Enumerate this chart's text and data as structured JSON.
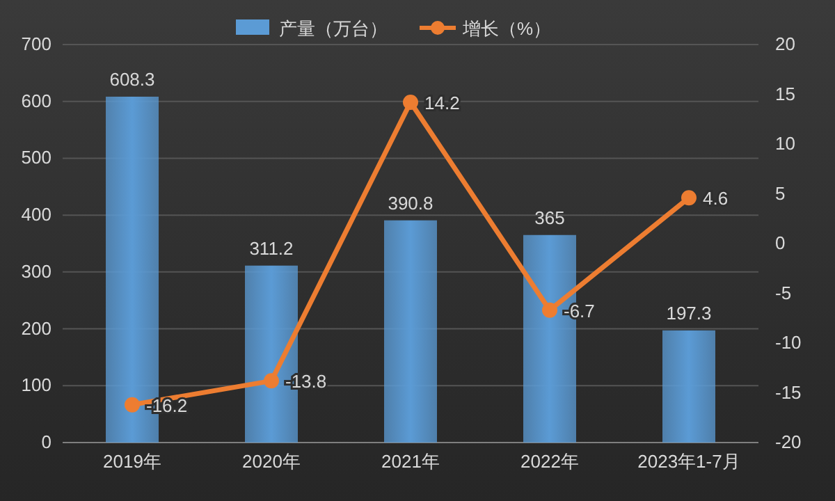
{
  "chart_data": {
    "type": "bar",
    "categories": [
      "2019年",
      "2020年",
      "2021年",
      "2022年",
      "2023年1-7月"
    ],
    "series": [
      {
        "name": "产量（万台）",
        "color": "#5b9bd5",
        "values": [
          608.3,
          311.2,
          390.8,
          365,
          197.3
        ]
      },
      {
        "name": "增长（%）",
        "type": "line",
        "axis": "y2",
        "color": "#ed7d31",
        "values": [
          -16.2,
          -13.8,
          14.2,
          -6.7,
          4.6
        ]
      }
    ],
    "ylim": [
      0,
      700
    ],
    "yticks": [
      0,
      100,
      200,
      300,
      400,
      500,
      600,
      700
    ],
    "y2lim": [
      -20,
      20
    ],
    "y2ticks": [
      -20,
      -15,
      -10,
      -5,
      0,
      5,
      10,
      15,
      20
    ],
    "grid": "y",
    "legend": "top",
    "marker": "circle",
    "line_style": "solid",
    "data_labels": true
  }
}
